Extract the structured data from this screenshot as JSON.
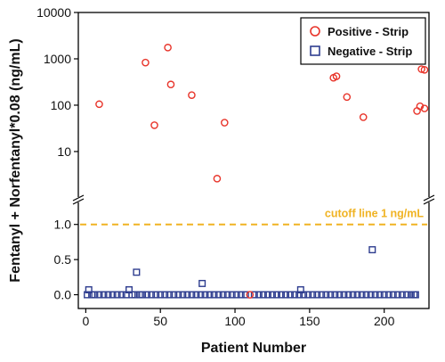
{
  "chart_data": {
    "type": "scatter",
    "xlabel": "Patient Number",
    "ylabel": "Fentanyl + Norfentanyl*0.08 (ng/mL)",
    "xlim": [
      -5,
      230
    ],
    "xticks": [
      "0",
      "50",
      "100",
      "150",
      "200"
    ],
    "upper_panel": {
      "scale": "log",
      "ylim": [
        1.3,
        10000
      ],
      "yticks": [
        "10",
        "100",
        "1000",
        "10000"
      ]
    },
    "lower_panel": {
      "scale": "linear",
      "ylim": [
        -0.12,
        1.25
      ],
      "yticks": [
        "0.0",
        "0.5",
        "1.0"
      ]
    },
    "axis_break": true,
    "cutoff": {
      "y": 1.0,
      "label": "cutoff line 1 ng/mL",
      "color": "#f0b323"
    },
    "legend": {
      "position": "top-right"
    },
    "series": [
      {
        "name": "Positive - Strip",
        "marker": "circle",
        "color": "#e8342a",
        "points": [
          [
            9,
            105
          ],
          [
            40,
            830
          ],
          [
            46,
            37
          ],
          [
            55,
            1750
          ],
          [
            57,
            280
          ],
          [
            71,
            165
          ],
          [
            88,
            2.6
          ],
          [
            93,
            42
          ],
          [
            110,
            0.0
          ],
          [
            166,
            390
          ],
          [
            168,
            420
          ],
          [
            175,
            150
          ],
          [
            186,
            55
          ],
          [
            222,
            75
          ],
          [
            224,
            95
          ],
          [
            225,
            600
          ],
          [
            227,
            580
          ],
          [
            227,
            85
          ]
        ]
      },
      {
        "name": "Negative - Strip",
        "marker": "square",
        "color": "#2e3d8f",
        "points": [
          [
            2,
            0.07
          ],
          [
            29,
            0.07
          ],
          [
            34,
            0.32
          ],
          [
            78,
            0.16
          ],
          [
            144,
            0.07
          ],
          [
            192,
            0.64
          ],
          [
            1,
            0
          ],
          [
            4,
            0
          ],
          [
            6,
            0
          ],
          [
            9,
            0
          ],
          [
            12,
            0
          ],
          [
            15,
            0
          ],
          [
            18,
            0
          ],
          [
            21,
            0
          ],
          [
            24,
            0
          ],
          [
            27,
            0
          ],
          [
            31,
            0
          ],
          [
            33,
            0
          ],
          [
            36,
            0
          ],
          [
            38,
            0
          ],
          [
            41,
            0
          ],
          [
            44,
            0
          ],
          [
            47,
            0
          ],
          [
            50,
            0
          ],
          [
            53,
            0
          ],
          [
            56,
            0
          ],
          [
            59,
            0
          ],
          [
            62,
            0
          ],
          [
            65,
            0
          ],
          [
            68,
            0
          ],
          [
            71,
            0
          ],
          [
            74,
            0
          ],
          [
            77,
            0
          ],
          [
            80,
            0
          ],
          [
            83,
            0
          ],
          [
            86,
            0
          ],
          [
            89,
            0
          ],
          [
            92,
            0
          ],
          [
            95,
            0
          ],
          [
            98,
            0
          ],
          [
            101,
            0
          ],
          [
            104,
            0
          ],
          [
            107,
            0
          ],
          [
            113,
            0
          ],
          [
            116,
            0
          ],
          [
            119,
            0
          ],
          [
            122,
            0
          ],
          [
            125,
            0
          ],
          [
            128,
            0
          ],
          [
            131,
            0
          ],
          [
            134,
            0
          ],
          [
            137,
            0
          ],
          [
            140,
            0
          ],
          [
            143,
            0
          ],
          [
            146,
            0
          ],
          [
            149,
            0
          ],
          [
            152,
            0
          ],
          [
            155,
            0
          ],
          [
            158,
            0
          ],
          [
            161,
            0
          ],
          [
            164,
            0
          ],
          [
            167,
            0
          ],
          [
            170,
            0
          ],
          [
            173,
            0
          ],
          [
            176,
            0
          ],
          [
            179,
            0
          ],
          [
            182,
            0
          ],
          [
            185,
            0
          ],
          [
            188,
            0
          ],
          [
            191,
            0
          ],
          [
            194,
            0
          ],
          [
            197,
            0
          ],
          [
            200,
            0
          ],
          [
            203,
            0
          ],
          [
            206,
            0
          ],
          [
            209,
            0
          ],
          [
            212,
            0
          ],
          [
            215,
            0
          ],
          [
            218,
            0
          ],
          [
            220,
            0
          ],
          [
            221,
            0
          ]
        ]
      }
    ]
  }
}
